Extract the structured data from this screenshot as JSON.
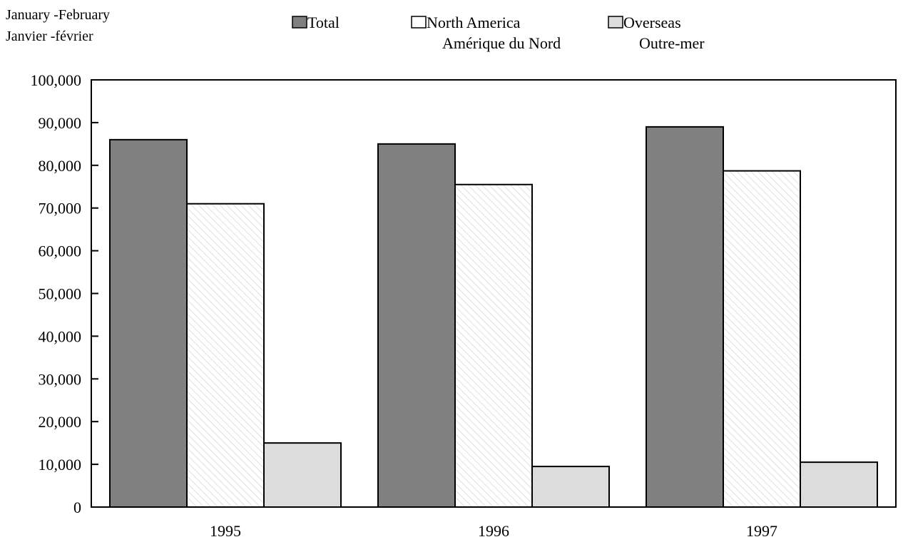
{
  "chart_data": {
    "type": "bar",
    "period_label": {
      "line1": "January -February",
      "line2": "Janvier -février"
    },
    "categories": [
      "1995",
      "1996",
      "1997"
    ],
    "series": [
      {
        "name": "Total",
        "name_line2": "",
        "color": "#808080",
        "pattern": "solid",
        "values": [
          86000,
          85000,
          89000
        ]
      },
      {
        "name": "North America",
        "name_line2": "Amérique du Nord",
        "color": "#ffffff",
        "pattern": "hatched",
        "values": [
          71000,
          75500,
          78700
        ]
      },
      {
        "name": "Overseas",
        "name_line2": "Outre-mer",
        "color": "#dcdcdc",
        "pattern": "solid",
        "values": [
          15000,
          9500,
          10500
        ]
      }
    ],
    "ylim": [
      0,
      100000
    ],
    "y_ticks": [
      "0",
      "10,000",
      "20,000",
      "30,000",
      "40,000",
      "50,000",
      "60,000",
      "70,000",
      "80,000",
      "90,000",
      "100,000"
    ],
    "grid": false,
    "legend_placement": "top"
  }
}
